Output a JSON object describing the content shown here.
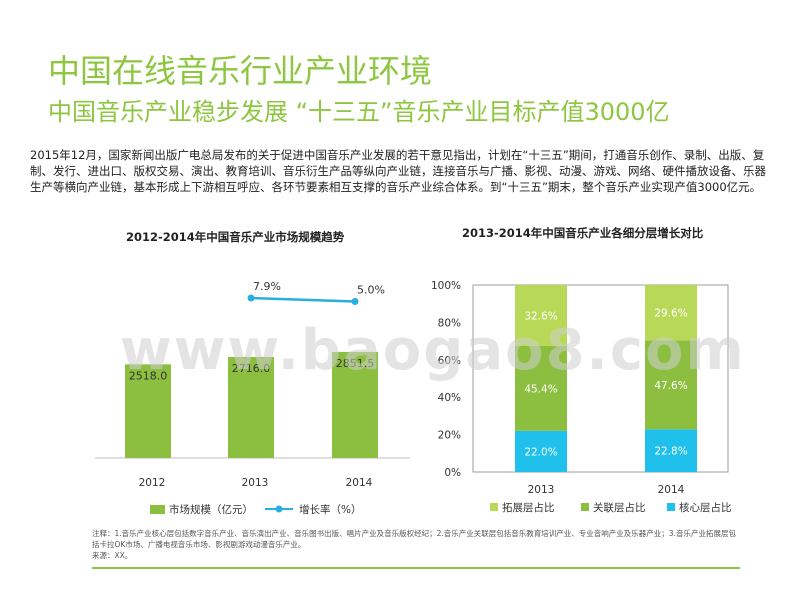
{
  "title": "中国在线音乐行业产业环境",
  "subtitle": "中国音乐产业稳步发展 “十三五”音乐产业目标产值3000亿",
  "intro": "2015年12月，国家新闻出版广电总局发布的关于促进中国音乐产业发展的若干意见指出，计划在“十三五”期间，打通音乐创作、录制、出版、复制、发行、进出口、版权交易、演出、教育培训、音乐衍生产品等纵向产业链，连接音乐与广播、影视、动漫、游戏、网络、硬件播放设备、乐器生产等横向产业链，基本形成上下游相互呼应、各环节要素相互支撑的音乐产业综合体系。到“十三五”期末，整个音乐产业实现产值3000亿元。",
  "watermark": "www.baogao8.com",
  "note": "注释：1.音乐产业核心层包括数字音乐产业、音乐演出产业、音乐图书出版、唱片产业及音乐版权经纪；2.音乐产业关联层包括音乐教育培训产业、专业音响产业及乐器产业；3.音乐产业拓展层包括卡拉OK市场、广播电视音乐市场、影视剧游戏动漫音乐产业。",
  "source": "来源：XX。",
  "colors": {
    "green": "#8dc63f",
    "dark_green": "#8cbf3f",
    "light_green": "#b8d957",
    "cyan": "#1fc0eb",
    "line": "#29aee3"
  },
  "chart_data": [
    {
      "type": "bar",
      "title": "2012-2014年中国音乐产业市场规模趋势",
      "categories": [
        "2012",
        "2013",
        "2014"
      ],
      "series": [
        {
          "name": "市场规模（亿元）",
          "kind": "bar",
          "values": [
            2518.0,
            2716.0,
            2851.5
          ],
          "labels": [
            "2518.0",
            "2716.0",
            "2851.5"
          ]
        },
        {
          "name": "增长率（%）",
          "kind": "line",
          "values": [
            null,
            7.9,
            5.0
          ],
          "labels": [
            "",
            "7.9%",
            "5.0%"
          ]
        }
      ],
      "legend_position": "bottom"
    },
    {
      "type": "bar",
      "stacked": true,
      "title": "2013-2014年中国音乐产业各细分层增长对比",
      "categories": [
        "2013",
        "2014"
      ],
      "y_ticks": [
        "0%",
        "20%",
        "40%",
        "60%",
        "80%",
        "100%"
      ],
      "ylim": [
        0,
        100
      ],
      "series": [
        {
          "name": "核心层占比",
          "values": [
            22.0,
            22.8
          ],
          "labels": [
            "22.0%",
            "22.8%"
          ]
        },
        {
          "name": "关联层占比",
          "values": [
            45.4,
            47.6
          ],
          "labels": [
            "45.4%",
            "47.6%"
          ]
        },
        {
          "name": "拓展层占比",
          "values": [
            32.6,
            29.6
          ],
          "labels": [
            "32.6%",
            "29.6%"
          ]
        }
      ],
      "legend_order": [
        "拓展层占比",
        "关联层占比",
        "核心层占比"
      ],
      "legend_position": "bottom"
    }
  ]
}
